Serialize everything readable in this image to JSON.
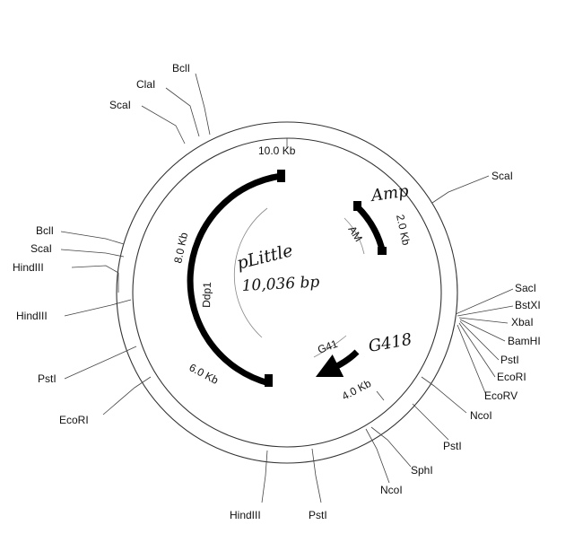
{
  "plasmid": {
    "name": "pLittle",
    "size": "10,036 bp"
  },
  "kb_markers": {
    "m10": "10.0 Kb",
    "m2": "2.0 Kb",
    "m4": "4.0 Kb",
    "m6": "6.0 Kb",
    "m8": "8.0 Kb"
  },
  "genes": {
    "amp_label": "Amp",
    "amp_inner": "AM",
    "g418_label": "G418",
    "g418_inner": "G41",
    "ddp_label": "Ddp1"
  },
  "sites": {
    "bcl1_top": "BclI",
    "cla1": "ClaI",
    "sca1_top": "ScaI",
    "sca1_right": "ScaI",
    "sac1": "SacI",
    "bstx1": "BstXI",
    "xba1": "XbaI",
    "bamh1": "BamHI",
    "pst1_right": "PstI",
    "ecor1_right": "EcoRI",
    "ecorv": "EcoRV",
    "nco1_right": "NcoI",
    "pst1_lowright": "PstI",
    "sph1": "SphI",
    "nco1_bottom": "NcoI",
    "pst1_bottom": "PstI",
    "hind3_bottom": "HindIII",
    "ecor1_left": "EcoRI",
    "pst1_left": "PstI",
    "hind3_left": "HindIII",
    "hind3_upperleft": "HindIII",
    "sca1_left": "ScaI",
    "bcl1_left": "BclI"
  }
}
